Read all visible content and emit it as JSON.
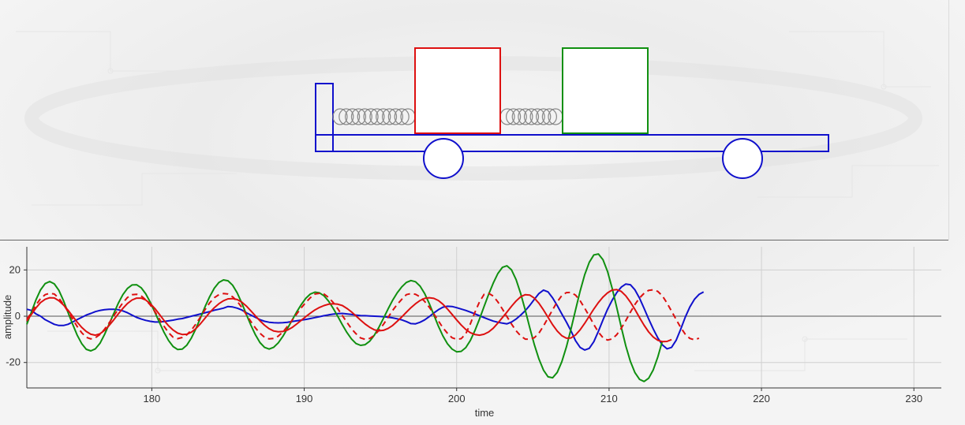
{
  "chart_data": {
    "type": "line",
    "xlabel": "time",
    "ylabel": "amplitude",
    "xlim": [
      171.8,
      231.8
    ],
    "ylim": [
      -31,
      30
    ],
    "x_ticks": [
      180,
      190,
      200,
      210,
      220,
      230
    ],
    "y_ticks": [
      20,
      0,
      -20
    ],
    "grid": true,
    "x_start": 171.8,
    "x_step": 0.3,
    "series": [
      {
        "color": "#1010cc",
        "style": "solid",
        "values": [
          3,
          2.5,
          1,
          0,
          -1.5,
          -2.5,
          -3.5,
          -4,
          -4,
          -3.5,
          -2.5,
          -1.5,
          -0.5,
          0.5,
          1.2,
          2,
          2.5,
          2.8,
          3,
          3,
          2.8,
          2.3,
          1.5,
          0.5,
          -0.5,
          -1.2,
          -1.8,
          -2.2,
          -2.5,
          -2.5,
          -2.3,
          -2,
          -1.7,
          -1.3,
          -1,
          -0.5,
          0,
          0.5,
          1,
          1.5,
          2,
          2.6,
          3,
          3.5,
          4.2,
          4,
          3.5,
          2.7,
          1.5,
          0.5,
          -0.5,
          -1.5,
          -2.2,
          -2.6,
          -2.8,
          -2.9,
          -2.8,
          -2.6,
          -2.3,
          -2,
          -1.7,
          -1.4,
          -1,
          -0.6,
          -0.2,
          0.2,
          0.6,
          0.9,
          1.1,
          1.2,
          1,
          0.8,
          0.5,
          0.3,
          0.2,
          0.1,
          0,
          -0.1,
          -0.2,
          -0.4,
          -0.7,
          -1.1,
          -1.6,
          -2.3,
          -3.2,
          -3.3,
          -2.6,
          -1.6,
          -0.2,
          1.4,
          2.8,
          3.9,
          4.3,
          4.2,
          3.7,
          3.1,
          2.5,
          1.8,
          1,
          0.2,
          -0.6,
          -1.4,
          -2.1,
          -2.6,
          -3,
          -3.3,
          -2.5,
          -1.2,
          0.5,
          2.4,
          4.7,
          7.3,
          9.8,
          11.3,
          10.5,
          7.9,
          4.6,
          1,
          -2.5,
          -6.3,
          -10.6,
          -13.5,
          -14.6,
          -13.9,
          -11,
          -6.5,
          -1.6,
          3,
          6.9,
          10.2,
          12.6,
          13.9,
          13.6,
          11.4,
          7.8,
          3.4,
          -1.2,
          -5.5,
          -9.4,
          -12.4,
          -14.1,
          -13.5,
          -10.4,
          -5.6,
          -0.4,
          4,
          7.3,
          9.4,
          10.5
        ]
      },
      {
        "color": "#109010",
        "style": "solid",
        "values": [
          -3.5,
          1.8,
          7.1,
          11.4,
          14.1,
          15,
          14,
          11.2,
          6.8,
          1.6,
          -3.4,
          -8.1,
          -11.8,
          -14.3,
          -15,
          -14.1,
          -11.7,
          -7.9,
          -3.4,
          1.1,
          5.6,
          9.3,
          12,
          13.5,
          13.6,
          12.3,
          9.7,
          6,
          1.7,
          -2.7,
          -6.9,
          -10.5,
          -13.1,
          -14.4,
          -14.2,
          -12.5,
          -9.4,
          -5.3,
          -0.6,
          4.2,
          8.5,
          12.1,
          14.6,
          15.7,
          15.3,
          13.4,
          10.1,
          5.7,
          0.8,
          -3.9,
          -8.1,
          -11.4,
          -13.5,
          -14.2,
          -13.4,
          -11.5,
          -8.7,
          -5.3,
          -1.8,
          1.8,
          5,
          7.7,
          9.6,
          10.4,
          10.1,
          8.8,
          6.5,
          3.4,
          -0.1,
          -3.7,
          -7,
          -9.8,
          -11.8,
          -12.6,
          -12.3,
          -10.8,
          -8.2,
          -4.8,
          -0.9,
          3.1,
          6.9,
          10.1,
          12.7,
          14.6,
          15.4,
          14.9,
          13,
          9.8,
          5.5,
          0.6,
          -4.3,
          -8.5,
          -11.9,
          -14.2,
          -15.4,
          -15.2,
          -13.6,
          -10.5,
          -6.2,
          -1.2,
          4.2,
          9.5,
          14.3,
          18.4,
          21.1,
          21.8,
          20,
          15.8,
          9.8,
          2.6,
          -5.1,
          -12.3,
          -18.5,
          -23.3,
          -26.2,
          -26.6,
          -24.3,
          -19.7,
          -13.3,
          -5.6,
          2.7,
          10.8,
          17.9,
          23.3,
          26.5,
          26.9,
          24.4,
          19.3,
          12.1,
          3.8,
          -4.8,
          -12.8,
          -19.5,
          -24.4,
          -27.3,
          -28.2,
          -26.8,
          -23.2,
          -17.6,
          -10.7
        ]
      },
      {
        "color": "#dd1010",
        "style": "dashed",
        "values": [
          -1.3,
          1.5,
          4.9,
          7.6,
          9.3,
          9.9,
          9.6,
          7.8,
          5.1,
          2,
          -1.3,
          -4.4,
          -7.1,
          -9.1,
          -9.8,
          -9.3,
          -7.9,
          -5.6,
          -2.9,
          0.1,
          3,
          5.8,
          8.1,
          9.3,
          9.5,
          8.8,
          7.1,
          4.8,
          2,
          -1.2,
          -4.3,
          -7.1,
          -9.1,
          -9.7,
          -9.2,
          -8,
          -6,
          -3.3,
          -0.3,
          2.9,
          5.8,
          8,
          9.3,
          9.8,
          9.6,
          8.4,
          6.5,
          3.8,
          0.7,
          -2.3,
          -5.1,
          -7.4,
          -9.1,
          -9.8,
          -9.6,
          -8.6,
          -6.8,
          -4.4,
          -1.8,
          0.9,
          3.6,
          5.9,
          8,
          9.6,
          9.9,
          9.6,
          8.1,
          5.9,
          3.2,
          0.3,
          -2.6,
          -5.4,
          -7.6,
          -9.4,
          -10,
          -9.6,
          -8.3,
          -6.1,
          -3.5,
          -0.5,
          2.5,
          5.1,
          7.3,
          9.3,
          9.8,
          9.5,
          8.4,
          6.4,
          3.9,
          1,
          -2,
          -5,
          -7.4,
          -9.3,
          -10,
          -9.7,
          -7.6,
          -3.3,
          1.7,
          6.2,
          9.4,
          9.9,
          8.7,
          6.2,
          3.1,
          -0.2,
          -3.4,
          -6.3,
          -8.5,
          -9.9,
          -9.9,
          -9.3,
          -7.3,
          -4.2,
          -0.7,
          2.8,
          6.2,
          8.9,
          10.2,
          10.3,
          9.1,
          6.7,
          3.5,
          0,
          -3.6,
          -6.9,
          -9.3,
          -10.3,
          -9.8,
          -8,
          -5.2,
          -1.9,
          1.7,
          5.1,
          7.9,
          9.9,
          11.2,
          11.4,
          10.7,
          8.8,
          5.7,
          2.2,
          -1.4,
          -4.9,
          -7.8,
          -9.6,
          -10.2,
          -9.5
        ]
      },
      {
        "color": "#dd1010",
        "style": "solid",
        "values": [
          -2,
          0.8,
          3.6,
          5.9,
          7.3,
          8,
          7.9,
          6.7,
          4.9,
          2.6,
          0,
          -2.5,
          -4.8,
          -6.6,
          -7.8,
          -8.2,
          -7.6,
          -6.1,
          -4,
          -1.6,
          1,
          3.4,
          5.5,
          7,
          7.8,
          7.8,
          7,
          5.4,
          3.3,
          0.8,
          -1.8,
          -4.1,
          -6,
          -7.3,
          -7.9,
          -7.8,
          -6.9,
          -5.3,
          -3.2,
          -0.8,
          1.6,
          3.7,
          5.4,
          6.7,
          7.5,
          7.6,
          7.2,
          6.1,
          4.4,
          2.3,
          0.1,
          -2,
          -3.9,
          -5.4,
          -6.4,
          -6.7,
          -6.6,
          -6,
          -4.9,
          -3.4,
          -1.8,
          -0.2,
          1.3,
          2.7,
          3.8,
          4.6,
          5.2,
          5.4,
          5.2,
          4.6,
          3.4,
          1.9,
          0.1,
          -1.7,
          -3.4,
          -4.8,
          -5.9,
          -6.3,
          -6.1,
          -5.3,
          -4,
          -2.2,
          -0.3,
          1.7,
          3.7,
          5.4,
          6.8,
          7.7,
          8,
          7.7,
          6.8,
          5.2,
          3.1,
          0.8,
          -1.6,
          -3.8,
          -5.7,
          -7.1,
          -7.9,
          -8.2,
          -7.8,
          -6.8,
          -5.2,
          -3,
          -0.6,
          1.8,
          4.3,
          6.6,
          8.4,
          9.3,
          9.1,
          7.8,
          5.6,
          2.7,
          -0.5,
          -3.7,
          -6.4,
          -8.4,
          -9.5,
          -9.4,
          -8.1,
          -5.9,
          -3.1,
          0,
          3.1,
          5.9,
          8.3,
          10.1,
          11.3,
          11.5,
          10.7,
          8.8,
          6.1,
          2.9,
          -0.6,
          -3.9,
          -6.8,
          -9,
          -10.4,
          -11,
          -10.9,
          -10.1
        ]
      }
    ]
  },
  "scene": {
    "cart_color": "#1010cc",
    "mass1_color": "#dd1010",
    "mass2_color": "#109010",
    "spring_color": "#888888"
  }
}
